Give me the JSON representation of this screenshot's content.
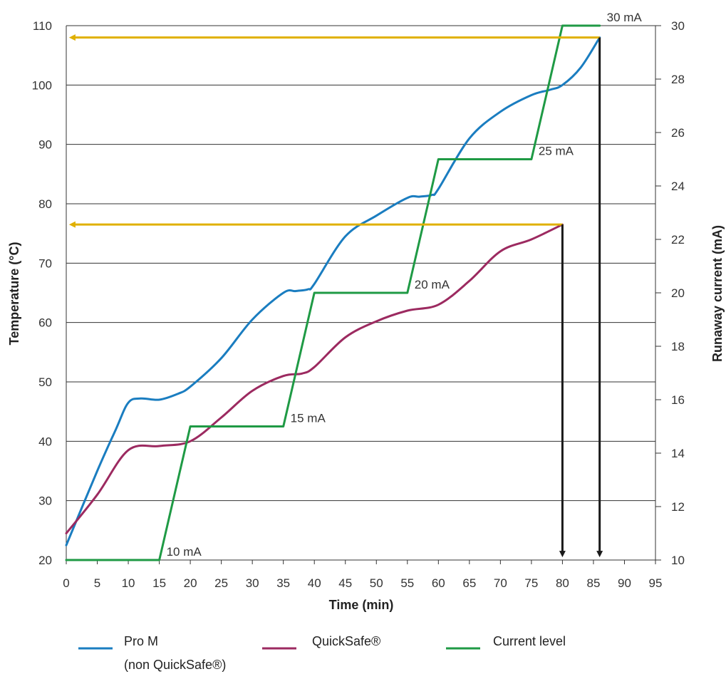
{
  "chart_data": {
    "type": "line",
    "xlabel": "Time (min)",
    "ylabel_left": "Temperature (°C)",
    "ylabel_right": "Runaway current (mA)",
    "x_ticks": [
      0,
      5,
      10,
      15,
      20,
      25,
      30,
      35,
      40,
      45,
      50,
      55,
      60,
      65,
      70,
      75,
      80,
      85,
      90,
      95
    ],
    "y_left_ticks": [
      20,
      30,
      40,
      50,
      60,
      70,
      80,
      90,
      100,
      110
    ],
    "y_right_ticks": [
      10,
      12,
      14,
      16,
      18,
      20,
      22,
      24,
      26,
      28,
      30
    ],
    "xlim": [
      0,
      95
    ],
    "ylim_left": [
      20,
      110
    ],
    "ylim_right": [
      10,
      30
    ],
    "grid": "horizontal",
    "colors": {
      "pro_m": "#1a7dc0",
      "quicksafe": "#9c2a60",
      "current": "#1f9a45",
      "marker_arrow": "#e0b000",
      "drop_arrow": "#1a1a1a",
      "grid": "#333333"
    },
    "series": [
      {
        "key": "pro_m",
        "name": "Pro M (non QuickSafe®)",
        "axis": "left",
        "points": [
          [
            0,
            22.5
          ],
          [
            5,
            35
          ],
          [
            8,
            42
          ],
          [
            10,
            46.5
          ],
          [
            12,
            47.2
          ],
          [
            15,
            47
          ],
          [
            18,
            48
          ],
          [
            20,
            49.2
          ],
          [
            25,
            54
          ],
          [
            30,
            60.5
          ],
          [
            35,
            65
          ],
          [
            37,
            65.3
          ],
          [
            39,
            65.6
          ],
          [
            40,
            66.5
          ],
          [
            45,
            74.5
          ],
          [
            50,
            78
          ],
          [
            55,
            81
          ],
          [
            57,
            81.2
          ],
          [
            59,
            81.5
          ],
          [
            60,
            82.5
          ],
          [
            65,
            91
          ],
          [
            70,
            95.5
          ],
          [
            75,
            98.3
          ],
          [
            78,
            99.2
          ],
          [
            80,
            100
          ],
          [
            83,
            103
          ],
          [
            86,
            108
          ]
        ]
      },
      {
        "key": "quicksafe",
        "name": "QuickSafe®",
        "axis": "left",
        "points": [
          [
            0,
            24.5
          ],
          [
            5,
            31
          ],
          [
            10,
            38.5
          ],
          [
            15,
            39.2
          ],
          [
            20,
            40
          ],
          [
            25,
            44
          ],
          [
            30,
            48.5
          ],
          [
            35,
            51
          ],
          [
            38,
            51.4
          ],
          [
            40,
            52.5
          ],
          [
            45,
            57.5
          ],
          [
            50,
            60.2
          ],
          [
            55,
            62
          ],
          [
            60,
            63
          ],
          [
            65,
            67
          ],
          [
            70,
            72
          ],
          [
            75,
            74
          ],
          [
            80,
            76.5
          ]
        ]
      },
      {
        "key": "current",
        "name": "Current level",
        "axis": "right",
        "points": [
          [
            0,
            10
          ],
          [
            15,
            10
          ],
          [
            20,
            15
          ],
          [
            35,
            15
          ],
          [
            40,
            20
          ],
          [
            55,
            20
          ],
          [
            60,
            25
          ],
          [
            75,
            25
          ],
          [
            80,
            30
          ],
          [
            86,
            30
          ]
        ]
      }
    ],
    "annotations": [
      {
        "text": "10 mA",
        "x": 15,
        "y_right": 10
      },
      {
        "text": "15   mA",
        "x": 35,
        "y_right": 15
      },
      {
        "text": "20 mA",
        "x": 55,
        "y_right": 20
      },
      {
        "text": "25 mA",
        "x": 75,
        "y_right": 25
      },
      {
        "text": "30 mA",
        "x": 86,
        "y_right": 30
      }
    ],
    "horizontal_arrows": [
      {
        "from_x": 86,
        "to_x": 0,
        "y": 108
      },
      {
        "from_x": 80,
        "to_x": 0,
        "y": 76.5
      }
    ],
    "vertical_arrows": [
      {
        "x": 86,
        "from_y": 108,
        "to_y": 20
      },
      {
        "x": 80,
        "from_y": 76.5,
        "to_y": 20
      }
    ],
    "legend": {
      "placement": "bottom",
      "items": [
        {
          "key": "pro_m",
          "label": "Pro M",
          "sublabel": "(non QuickSafe®)"
        },
        {
          "key": "quicksafe",
          "label": "QuickSafe®",
          "sublabel": ""
        },
        {
          "key": "current",
          "label": "Current level",
          "sublabel": ""
        }
      ]
    }
  }
}
